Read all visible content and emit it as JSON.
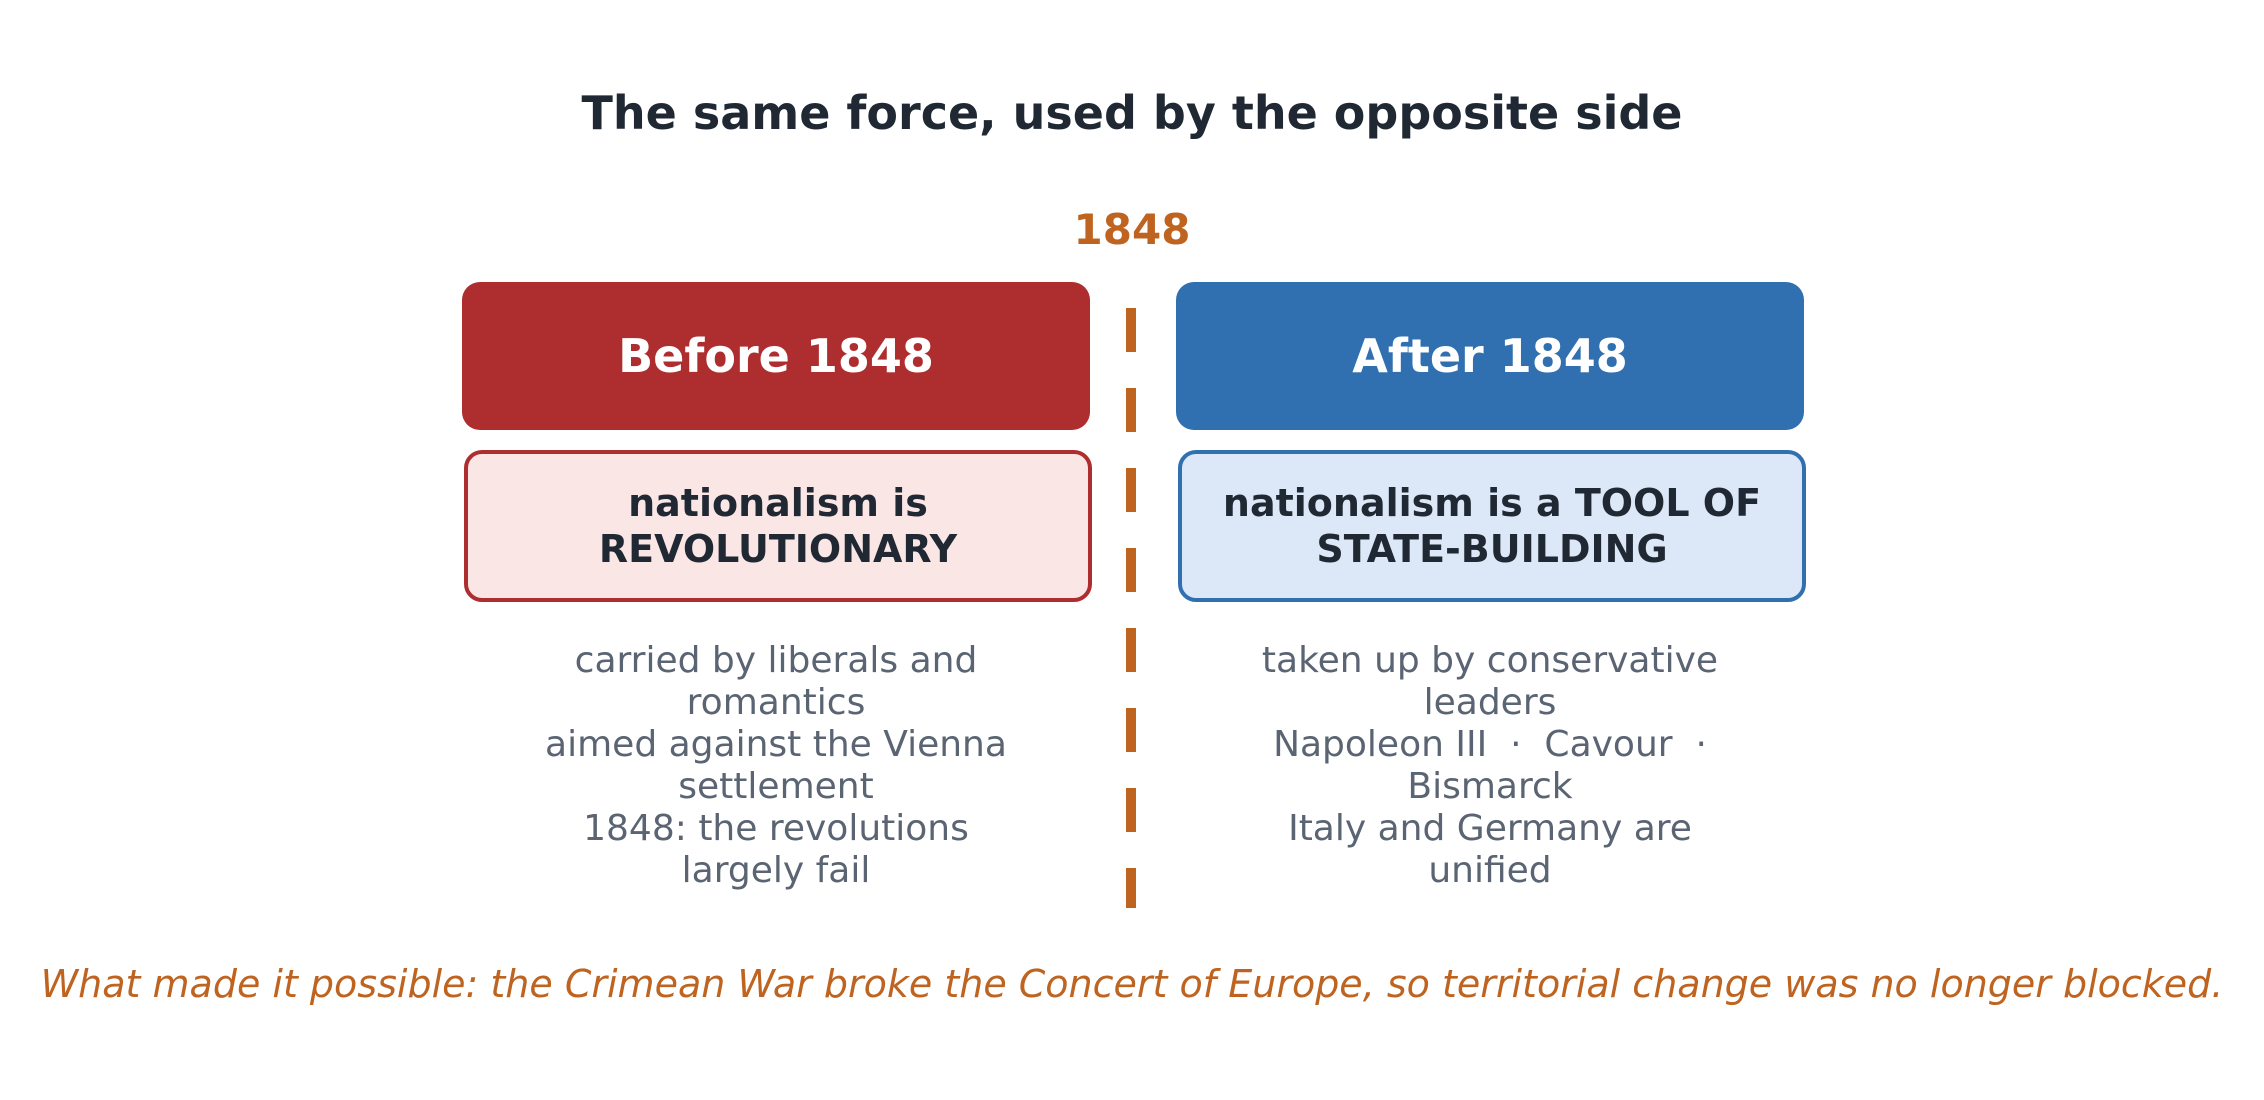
{
  "title": "The same force, used by the opposite side",
  "pivot_year": "1848",
  "colors": {
    "before_accent": "#ae2e2f",
    "before_fill": "#fbe6e6",
    "after_accent": "#3070b0",
    "after_fill": "#dce8f7",
    "pivot_accent": "#bf6420",
    "text_dark": "#1f2833",
    "text_muted": "#5a6472"
  },
  "before": {
    "header": "Before 1848",
    "claim": "nationalism is REVOLUTIONARY",
    "notes": [
      "carried by liberals and romantics",
      "aimed against the Vienna settlement",
      "1848: the revolutions largely fail"
    ]
  },
  "after": {
    "header": "After 1848",
    "claim": "nationalism is a TOOL OF STATE-BUILDING",
    "notes": [
      "taken up by conservative leaders",
      "Napoleon III  ·  Cavour  ·  Bismarck",
      "Italy and Germany are unified"
    ]
  },
  "footer": "What made it possible: the Crimean War broke the Concert of Europe, so territorial change was no longer blocked."
}
